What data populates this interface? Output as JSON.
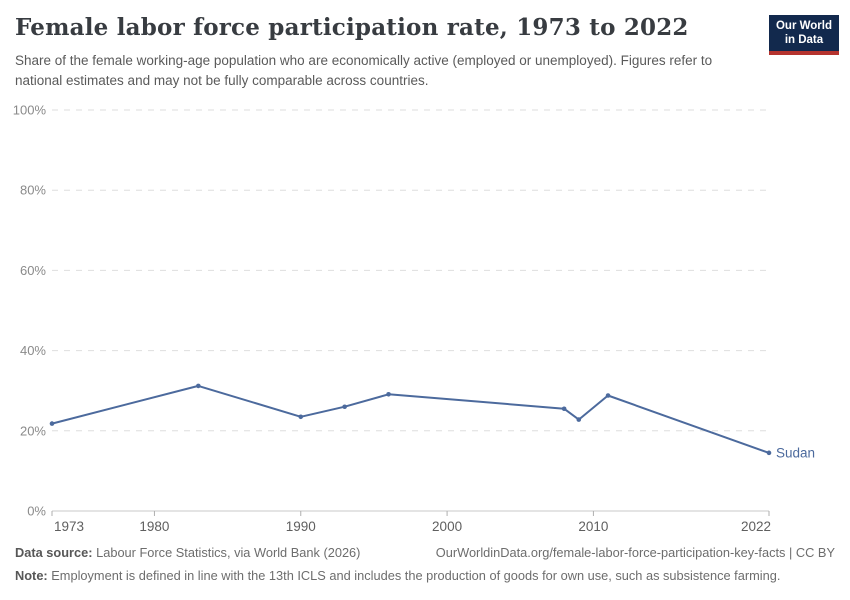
{
  "header": {
    "title": "Female labor force participation rate, 1973 to 2022",
    "logo": {
      "line1": "Our World",
      "line2": "in Data",
      "bg_color": "#12294d",
      "stripe_color": "#b5332e"
    }
  },
  "subtitle": "Share of the female working-age population who are economically active (employed or unemployed). Figures refer to national estimates and may not be fully comparable across countries.",
  "chart_data": {
    "type": "line",
    "title": "Female labor force participation rate, 1973 to 2022",
    "subtitle": "Share of the female working-age population who are economically active (employed or unemployed). Figures refer to national estimates and may not be fully comparable across countries.",
    "xlabel": "",
    "ylabel": "",
    "xlim": [
      1973,
      2022
    ],
    "ylim": [
      0,
      100
    ],
    "x_ticks": [
      1973,
      1980,
      1990,
      2000,
      2010,
      2022
    ],
    "y_ticks": [
      0,
      20,
      40,
      60,
      80,
      100
    ],
    "y_tick_suffix": "%",
    "grid": "horizontal-dashed",
    "legend_position": "end-of-line-label",
    "series": [
      {
        "name": "Sudan",
        "color": "#4c6a9d",
        "points": [
          [
            1973,
            21.8
          ],
          [
            1983,
            31.2
          ],
          [
            1990,
            23.5
          ],
          [
            1993,
            26.0
          ],
          [
            1996,
            29.1
          ],
          [
            2008,
            25.5
          ],
          [
            2009,
            22.8
          ],
          [
            2011,
            28.8
          ],
          [
            2022,
            14.5
          ]
        ]
      }
    ]
  },
  "footer": {
    "datasource_label": "Data source:",
    "datasource_text": " Labour Force Statistics, via World Bank (2026)",
    "url_text": "OurWorldinData.org/female-labor-force-participation-key-facts | CC BY",
    "note_label": "Note:",
    "note_text": " Employment is defined in line with the 13th ICLS and includes the production of goods for own use, such as subsistence farming."
  },
  "colors": {
    "line": "#4c6a9d",
    "grid_dashed": "#dedede",
    "axis_line": "#c8c8c8",
    "tick_mark": "#afafaf",
    "y_label": "#8a8a8a",
    "x_label": "#5f5f5f"
  }
}
